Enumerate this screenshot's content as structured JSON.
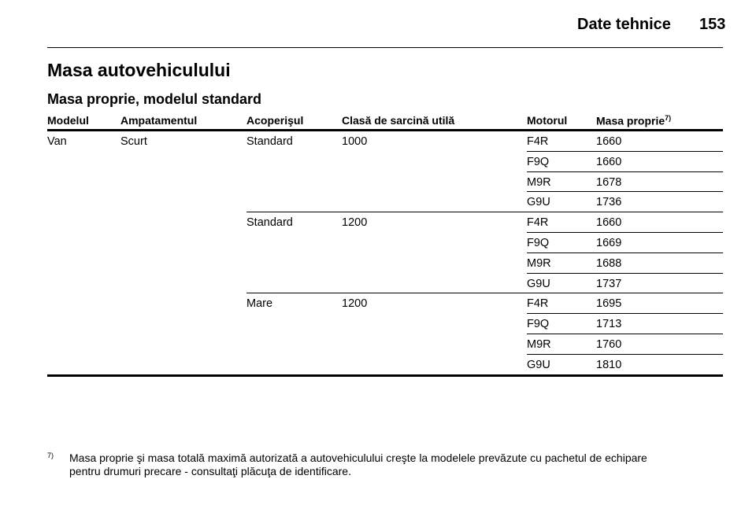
{
  "header": {
    "section": "Date tehnice",
    "page": "153"
  },
  "title": "Masa autovehiculului",
  "subtitle": "Masa proprie, modelul standard",
  "table": {
    "columns": [
      "Modelul",
      "Ampatamentul",
      "Acoperişul",
      "Clasă de sarcină utilă",
      "Motorul",
      "Masa proprie"
    ],
    "column_note": "7)",
    "model": "Van",
    "wheelbase": "Scurt",
    "roofs": [
      {
        "roof": "Standard",
        "load": "1000",
        "engines": [
          {
            "engine": "F4R",
            "mass": 1660
          },
          {
            "engine": "F9Q",
            "mass": 1660
          },
          {
            "engine": "M9R",
            "mass": 1678
          },
          {
            "engine": "G9U",
            "mass": 1736
          }
        ]
      },
      {
        "roof": "Standard",
        "load": "1200",
        "engines": [
          {
            "engine": "F4R",
            "mass": 1660
          },
          {
            "engine": "F9Q",
            "mass": 1669
          },
          {
            "engine": "M9R",
            "mass": 1688
          },
          {
            "engine": "G9U",
            "mass": 1737
          }
        ]
      },
      {
        "roof": "Mare",
        "load": "1200",
        "engines": [
          {
            "engine": "F4R",
            "mass": 1695
          },
          {
            "engine": "F9Q",
            "mass": 1713
          },
          {
            "engine": "M9R",
            "mass": 1760
          },
          {
            "engine": "G9U",
            "mass": 1810
          }
        ]
      }
    ]
  },
  "footnote": {
    "marker": "7)",
    "lines": [
      "Masa proprie şi masa totală maximă autorizată a autovehiculului creşte la modelele prevăzute cu pachetul de echipare",
      "pentru drumuri precare - consultaţi plăcuţa de identificare."
    ]
  }
}
